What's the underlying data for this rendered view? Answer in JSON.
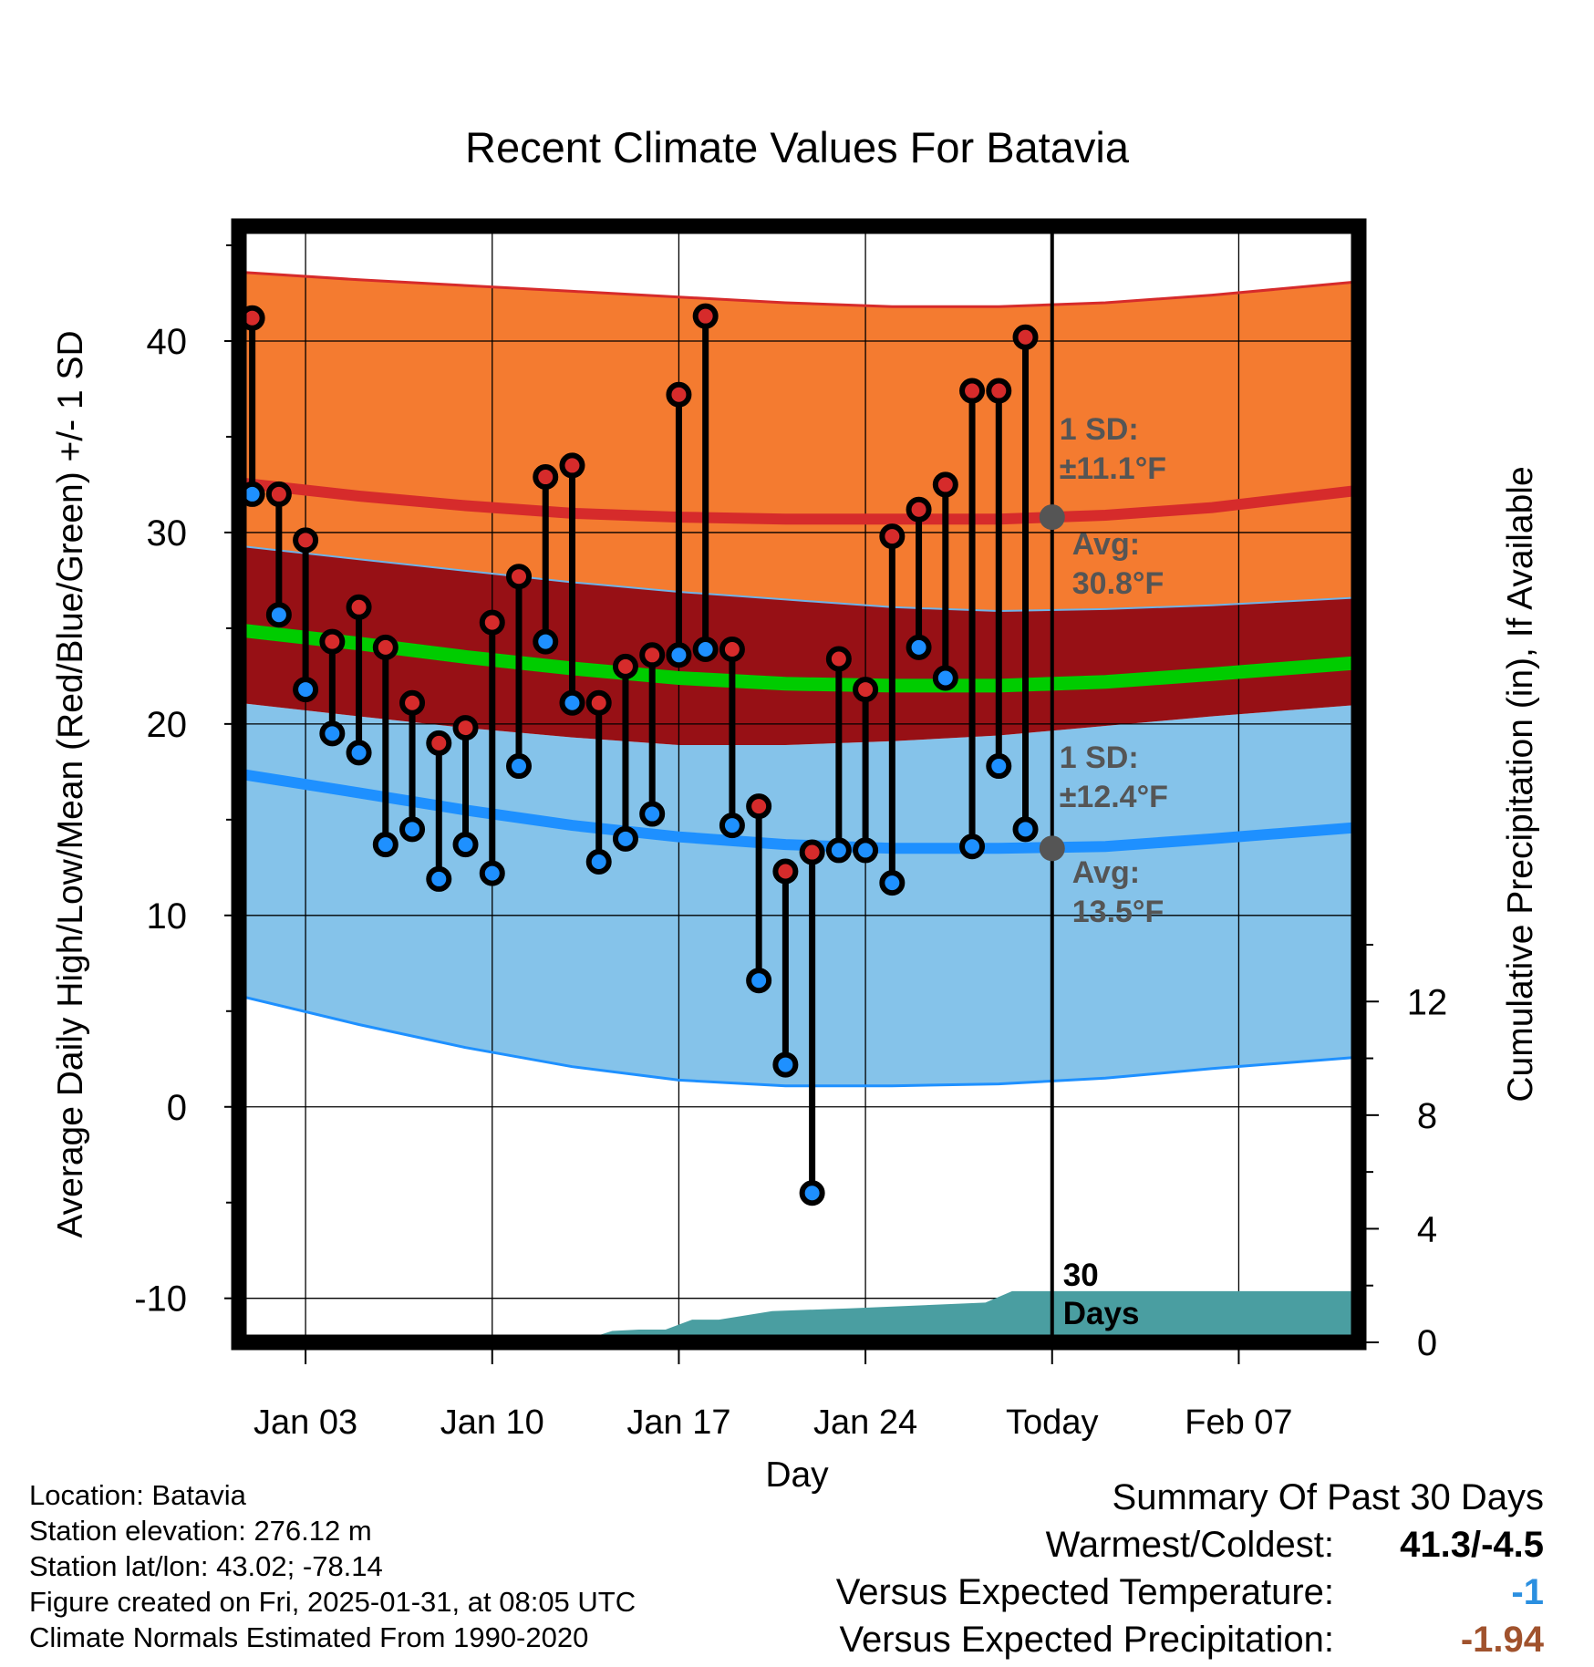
{
  "chart_data": {
    "type": "line",
    "title": "Recent Climate Values For Batavia",
    "xlabel": "Day",
    "ylabel": "Average Daily High/Low/Mean (Red/Blue/Green) +/- 1 SD",
    "y2label": "Cumulative Precipitation (in), If Available",
    "xlim": [
      -0.5,
      41.5
    ],
    "ylim": [
      -12.3,
      46
    ],
    "y2lim": [
      0,
      39.3
    ],
    "x_tick_labels": [
      {
        "x": 2,
        "label": "Jan 03"
      },
      {
        "x": 9,
        "label": "Jan 10"
      },
      {
        "x": 16,
        "label": "Jan 17"
      },
      {
        "x": 23,
        "label": "Jan 24"
      },
      {
        "x": 30,
        "label": "Today"
      },
      {
        "x": 37,
        "label": "Feb 07"
      }
    ],
    "y_ticks": [
      -10,
      0,
      10,
      20,
      30,
      40
    ],
    "y_tick_labels": [
      "-10",
      "0",
      "10",
      "20",
      "30",
      "40"
    ],
    "y2_ticks": [
      0,
      4,
      8,
      12
    ],
    "y2_tick_labels": [
      "0",
      "4",
      "8",
      "12"
    ],
    "today_x": 30,
    "today_label": "30\nDays",
    "normals_x": [
      -0.5,
      4,
      8,
      12,
      16,
      20,
      24,
      28,
      32,
      36,
      41.5
    ],
    "normal_high": [
      32.6,
      31.9,
      31.4,
      31.0,
      30.8,
      30.7,
      30.7,
      30.7,
      30.9,
      31.3,
      32.2
    ],
    "normal_high_upper": [
      43.6,
      43.2,
      42.9,
      42.6,
      42.3,
      42.0,
      41.8,
      41.8,
      42.0,
      42.4,
      43.1
    ],
    "normal_high_lower": [
      29.3,
      28.6,
      28.0,
      27.4,
      26.9,
      26.5,
      26.1,
      25.9,
      26.0,
      26.2,
      26.6
    ],
    "normal_low": [
      17.4,
      16.4,
      15.5,
      14.7,
      14.1,
      13.7,
      13.5,
      13.5,
      13.6,
      14.0,
      14.6
    ],
    "normal_low_upper": [
      21.1,
      20.4,
      19.8,
      19.3,
      18.9,
      18.9,
      19.1,
      19.4,
      19.9,
      20.4,
      21.0
    ],
    "normal_low_lower": [
      5.8,
      4.3,
      3.1,
      2.1,
      1.4,
      1.1,
      1.1,
      1.2,
      1.5,
      2.0,
      2.6
    ],
    "normal_mean": [
      24.9,
      24.2,
      23.5,
      22.9,
      22.4,
      22.1,
      22.0,
      22.0,
      22.2,
      22.6,
      23.2
    ],
    "days": [
      0,
      1,
      2,
      3,
      4,
      5,
      6,
      7,
      8,
      9,
      10,
      11,
      12,
      13,
      14,
      15,
      16,
      17,
      18,
      19,
      20,
      21,
      22,
      23,
      24,
      25,
      26,
      27,
      28,
      29
    ],
    "series": [
      {
        "name": "Daily High",
        "color": "#d62b2b",
        "values": [
          41.2,
          32.0,
          29.6,
          24.3,
          26.1,
          24.0,
          21.1,
          19.0,
          19.8,
          25.3,
          27.7,
          32.9,
          33.5,
          21.1,
          23.0,
          23.6,
          37.2,
          41.3,
          23.9,
          15.7,
          12.3,
          13.3,
          23.4,
          21.8,
          29.8,
          31.2,
          32.5,
          37.4,
          37.4,
          40.2
        ]
      },
      {
        "name": "Daily Low",
        "color": "#1e90ff",
        "values": [
          32.0,
          25.7,
          21.8,
          19.5,
          18.5,
          13.7,
          14.5,
          11.9,
          13.7,
          12.2,
          17.8,
          24.3,
          21.1,
          12.8,
          14.0,
          15.3,
          23.6,
          23.9,
          14.7,
          6.6,
          2.2,
          -4.5,
          13.4,
          13.4,
          11.7,
          24.0,
          22.4,
          13.6,
          17.8,
          14.5
        ]
      }
    ],
    "precip_x": [
      -0.5,
      9.5,
      10.5,
      12.5,
      13.5,
      14.5,
      15.5,
      16.5,
      17.5,
      19.5,
      22.5,
      27.5,
      28.5,
      41.5
    ],
    "precip_values": [
      0,
      0,
      0.05,
      0.1,
      0.4,
      0.45,
      0.45,
      0.8,
      0.8,
      1.1,
      1.2,
      1.4,
      1.8,
      1.8
    ],
    "annotations": {
      "high_sd": "1 SD:",
      "high_sd_value": "±11.1°F",
      "high_avg": "Avg:",
      "high_avg_value": "30.8°F",
      "high_avg_y": 30.8,
      "low_sd": "1 SD:",
      "low_sd_value": "±12.4°F",
      "low_avg": "Avg:",
      "low_avg_value": "13.5°F",
      "low_avg_y": 13.5
    },
    "colors": {
      "high_band": "#f47b30",
      "overlap_band": "#971015",
      "low_band": "#85c3ea",
      "mean_line": "#00cc00",
      "high_line": "#d62b2b",
      "low_line": "#1e90ff",
      "precip": "#4a9ea1",
      "annotation": "#555555",
      "marker_high": "#d62b2b",
      "marker_low": "#1e90ff"
    }
  },
  "info": {
    "location": "Location: Batavia",
    "elevation": "Station elevation: 276.12 m",
    "latlon": "Station lat/lon: 43.02; -78.14",
    "created": "Figure created on Fri, 2025-01-31, at 08:05 UTC",
    "normals": "Climate Normals Estimated From 1990-2020"
  },
  "summary": {
    "title": "Summary Of Past 30 Days",
    "warmest_coldest_label": "Warmest/Coldest:",
    "warmest_coldest_value": "41.3/-4.5",
    "temp_label": "Versus Expected Temperature:",
    "temp_value": "-1",
    "temp_color": "#2b8fe0",
    "precip_label": "Versus Expected Precipitation:",
    "precip_value": "-1.94",
    "precip_color": "#a0522d"
  }
}
